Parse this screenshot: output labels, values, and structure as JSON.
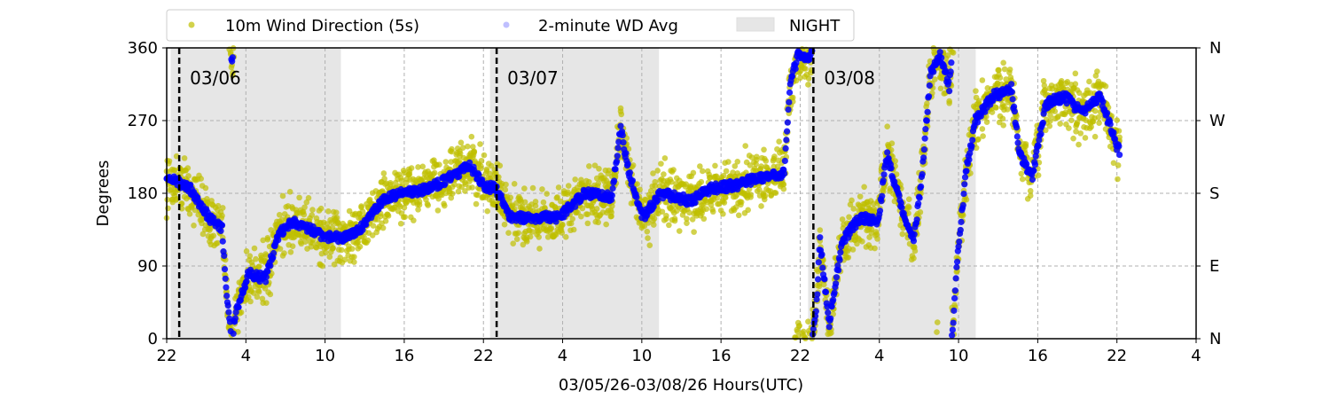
{
  "chart_data": {
    "type": "scatter",
    "title": "",
    "xlabel": "03/05/26-03/08/26  Hours(UTC)",
    "ylabel": "Degrees",
    "x_units": "hours since 03/05 22:00 UTC",
    "xlim": [
      0,
      78
    ],
    "ylim": [
      0,
      360
    ],
    "grid": true,
    "legend_placement": "top-center, above plot",
    "x_ticks": [
      {
        "h": 0,
        "label": "22"
      },
      {
        "h": 6,
        "label": "4"
      },
      {
        "h": 12,
        "label": "10"
      },
      {
        "h": 18,
        "label": "16"
      },
      {
        "h": 24,
        "label": "22"
      },
      {
        "h": 30,
        "label": "4"
      },
      {
        "h": 36,
        "label": "10"
      },
      {
        "h": 42,
        "label": "16"
      },
      {
        "h": 48,
        "label": "22"
      },
      {
        "h": 54,
        "label": "4"
      },
      {
        "h": 60,
        "label": "10"
      },
      {
        "h": 66,
        "label": "16"
      },
      {
        "h": 72,
        "label": "22"
      },
      {
        "h": 78,
        "label": "4"
      }
    ],
    "y_ticks": [
      0,
      90,
      180,
      270,
      360
    ],
    "y2_ticks": [
      {
        "v": 0,
        "label": "N"
      },
      {
        "v": 90,
        "label": "E"
      },
      {
        "v": 180,
        "label": "S"
      },
      {
        "v": 270,
        "label": "W"
      },
      {
        "v": 360,
        "label": "N"
      }
    ],
    "legend": [
      {
        "label": "10m Wind Direction (5s)",
        "color": "#bfbf00"
      },
      {
        "label": "2-minute WD Avg",
        "color": "#0000ff"
      },
      {
        "label": "NIGHT",
        "color": "#e6e6e6"
      }
    ],
    "night_spans": [
      [
        0.3,
        13.2
      ],
      [
        24.5,
        37.3
      ],
      [
        48.6,
        61.3
      ]
    ],
    "day_markers": [
      {
        "h": 0.95,
        "label": "03/06"
      },
      {
        "h": 25.0,
        "label": "03/07"
      },
      {
        "h": 49.0,
        "label": "03/08"
      }
    ],
    "series": [
      {
        "name": "2-minute WD Avg",
        "color": "#0000ff",
        "points": [
          [
            0,
            195
          ],
          [
            0.8,
            195
          ],
          [
            1.8,
            185
          ],
          [
            3.2,
            150
          ],
          [
            4.2,
            135
          ],
          [
            4.5,
            60
          ],
          [
            4.8,
            20
          ],
          [
            4.9,
            350
          ],
          [
            5.0,
            345
          ],
          [
            5.1,
            20
          ],
          [
            5.2,
            30
          ],
          [
            6.2,
            80
          ],
          [
            7.5,
            75
          ],
          [
            8.5,
            130
          ],
          [
            9.5,
            145
          ],
          [
            10.9,
            135
          ],
          [
            12.2,
            125
          ],
          [
            13.6,
            125
          ],
          [
            14.9,
            140
          ],
          [
            16.3,
            170
          ],
          [
            17.6,
            180
          ],
          [
            19.6,
            185
          ],
          [
            21.0,
            195
          ],
          [
            23.0,
            215
          ],
          [
            24.0,
            190
          ],
          [
            25.0,
            185
          ],
          [
            26.0,
            150
          ],
          [
            27.7,
            150
          ],
          [
            29.7,
            150
          ],
          [
            31.7,
            180
          ],
          [
            33.7,
            175
          ],
          [
            34.4,
            260
          ],
          [
            35.1,
            200
          ],
          [
            36.1,
            150
          ],
          [
            37.4,
            180
          ],
          [
            39.8,
            170
          ],
          [
            41.1,
            185
          ],
          [
            43.1,
            190
          ],
          [
            45.1,
            200
          ],
          [
            46.8,
            205
          ],
          [
            47.2,
            310
          ],
          [
            47.8,
            350
          ],
          [
            48.8,
            350
          ],
          [
            49.2,
            30
          ],
          [
            49.5,
            120
          ],
          [
            50.2,
            20
          ],
          [
            51.2,
            120
          ],
          [
            52.5,
            150
          ],
          [
            53.9,
            145
          ],
          [
            54.6,
            230
          ],
          [
            55.2,
            190
          ],
          [
            55.9,
            150
          ],
          [
            56.6,
            120
          ],
          [
            57.2,
            200
          ],
          [
            57.9,
            330
          ],
          [
            58.6,
            350
          ],
          [
            59.3,
            310
          ],
          [
            59.9,
            100
          ],
          [
            60.6,
            210
          ],
          [
            61.3,
            270
          ],
          [
            62.6,
            300
          ],
          [
            64.0,
            310
          ],
          [
            64.6,
            230
          ],
          [
            65.6,
            200
          ],
          [
            66.6,
            290
          ],
          [
            68.0,
            300
          ],
          [
            69.3,
            280
          ],
          [
            70.7,
            300
          ],
          [
            72.2,
            230
          ]
        ]
      },
      {
        "name": "10m Wind Direction (5s)",
        "color": "#bfbf00",
        "spread_deg": 25
      }
    ]
  }
}
